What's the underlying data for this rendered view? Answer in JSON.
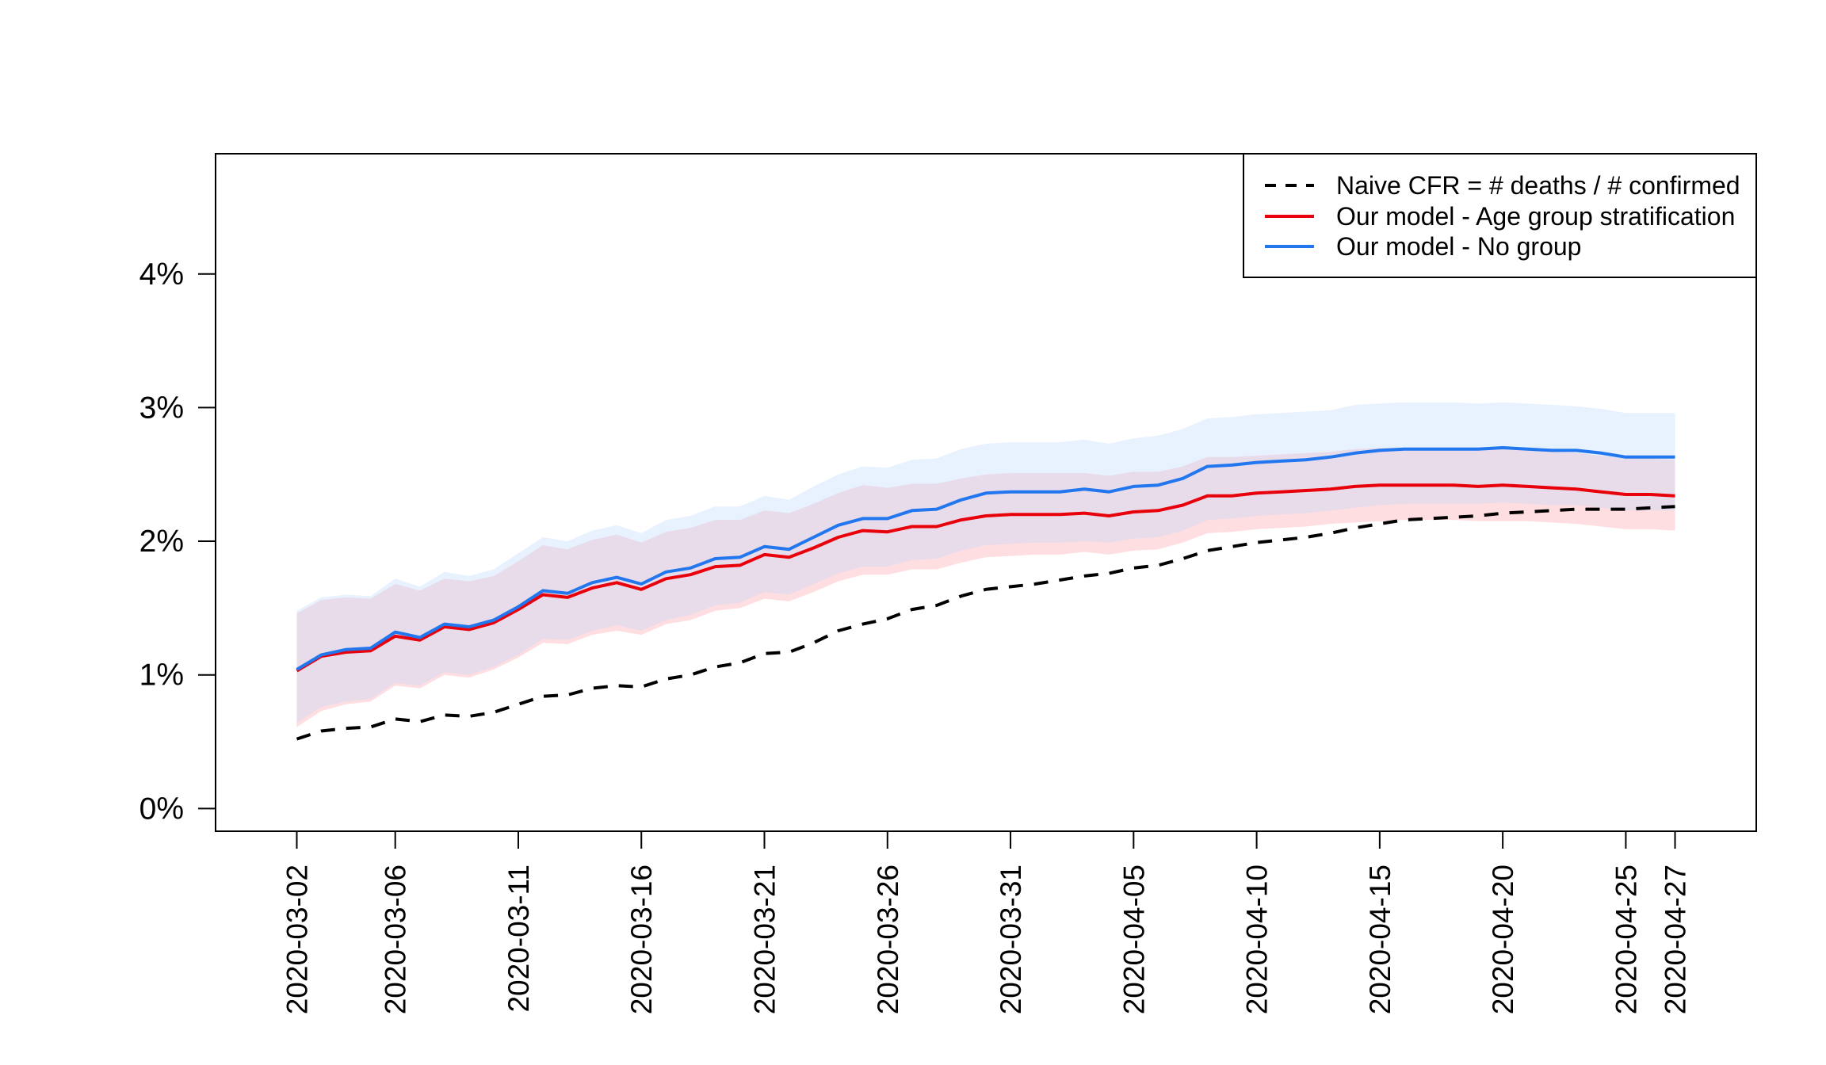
{
  "chart_data": {
    "type": "line",
    "title": "",
    "xlabel": "",
    "ylabel": "",
    "ylim": [
      -0.17,
      4.9
    ],
    "yticks": [
      0,
      1,
      2,
      3,
      4
    ],
    "ytick_labels": [
      "0%",
      "1%",
      "2%",
      "3%",
      "4%"
    ],
    "x_start": "2020-03-02",
    "x_tick_days": [
      0,
      4,
      9,
      14,
      19,
      24,
      29,
      34,
      39,
      44,
      49,
      54,
      56
    ],
    "x_tick_labels": [
      "2020-03-02",
      "2020-03-06",
      "2020-03-11",
      "2020-03-16",
      "2020-03-21",
      "2020-03-26",
      "2020-03-31",
      "2020-04-05",
      "2020-04-10",
      "2020-04-15",
      "2020-04-20",
      "2020-04-25",
      "2020-04-27"
    ],
    "x_range": [
      -3.3,
      59.3
    ],
    "legend_position": "top-right",
    "series": [
      {
        "name": "Naive CFR = # deaths / # confirmed",
        "color": "#000000",
        "dash": true,
        "values": [
          0.52,
          0.58,
          0.6,
          0.61,
          0.67,
          0.65,
          0.7,
          0.69,
          0.72,
          0.78,
          0.84,
          0.85,
          0.9,
          0.92,
          0.91,
          0.97,
          1.0,
          1.06,
          1.09,
          1.16,
          1.17,
          1.24,
          1.33,
          1.38,
          1.42,
          1.49,
          1.52,
          1.59,
          1.64,
          1.66,
          1.68,
          1.71,
          1.74,
          1.76,
          1.8,
          1.82,
          1.87,
          1.93,
          1.96,
          1.99,
          2.01,
          2.03,
          2.06,
          2.1,
          2.13,
          2.16,
          2.17,
          2.18,
          2.19,
          2.21,
          2.22,
          2.23,
          2.24,
          2.24,
          2.24,
          2.25,
          2.26
        ]
      },
      {
        "name": "Our model - Age group stratification",
        "color": "#E8000B",
        "band_color": "#FFA0A8",
        "values": [
          1.03,
          1.14,
          1.17,
          1.18,
          1.29,
          1.26,
          1.36,
          1.34,
          1.39,
          1.49,
          1.6,
          1.58,
          1.65,
          1.69,
          1.64,
          1.72,
          1.75,
          1.81,
          1.82,
          1.9,
          1.88,
          1.95,
          2.03,
          2.08,
          2.07,
          2.11,
          2.11,
          2.16,
          2.19,
          2.2,
          2.2,
          2.2,
          2.21,
          2.19,
          2.22,
          2.23,
          2.27,
          2.34,
          2.34,
          2.36,
          2.37,
          2.38,
          2.39,
          2.41,
          2.42,
          2.42,
          2.42,
          2.42,
          2.41,
          2.42,
          2.41,
          2.4,
          2.39,
          2.37,
          2.35,
          2.35,
          2.34
        ],
        "lower": [
          0.61,
          0.73,
          0.78,
          0.8,
          0.92,
          0.9,
          1.0,
          0.98,
          1.04,
          1.13,
          1.24,
          1.23,
          1.3,
          1.33,
          1.3,
          1.38,
          1.41,
          1.48,
          1.5,
          1.57,
          1.55,
          1.62,
          1.7,
          1.75,
          1.75,
          1.79,
          1.79,
          1.84,
          1.88,
          1.89,
          1.9,
          1.9,
          1.92,
          1.9,
          1.93,
          1.94,
          1.99,
          2.06,
          2.07,
          2.09,
          2.1,
          2.11,
          2.13,
          2.14,
          2.15,
          2.16,
          2.16,
          2.16,
          2.15,
          2.15,
          2.15,
          2.14,
          2.13,
          2.11,
          2.09,
          2.09,
          2.08
        ],
        "upper": [
          1.46,
          1.56,
          1.58,
          1.57,
          1.68,
          1.63,
          1.72,
          1.7,
          1.74,
          1.85,
          1.97,
          1.94,
          2.01,
          2.05,
          1.99,
          2.07,
          2.1,
          2.16,
          2.16,
          2.23,
          2.21,
          2.28,
          2.36,
          2.42,
          2.4,
          2.43,
          2.43,
          2.47,
          2.5,
          2.51,
          2.51,
          2.51,
          2.51,
          2.49,
          2.52,
          2.52,
          2.56,
          2.63,
          2.63,
          2.64,
          2.65,
          2.66,
          2.67,
          2.69,
          2.7,
          2.7,
          2.7,
          2.69,
          2.68,
          2.69,
          2.68,
          2.67,
          2.66,
          2.64,
          2.62,
          2.62,
          2.61
        ]
      },
      {
        "name": "Our model - No group",
        "color": "#2277EE",
        "band_color": "#BCD8FB",
        "values": [
          1.04,
          1.15,
          1.19,
          1.2,
          1.32,
          1.28,
          1.38,
          1.36,
          1.41,
          1.51,
          1.63,
          1.61,
          1.69,
          1.73,
          1.68,
          1.77,
          1.8,
          1.87,
          1.88,
          1.96,
          1.94,
          2.03,
          2.12,
          2.17,
          2.17,
          2.23,
          2.24,
          2.31,
          2.36,
          2.37,
          2.37,
          2.37,
          2.39,
          2.37,
          2.41,
          2.42,
          2.47,
          2.56,
          2.57,
          2.59,
          2.6,
          2.61,
          2.63,
          2.66,
          2.68,
          2.69,
          2.69,
          2.69,
          2.69,
          2.7,
          2.69,
          2.68,
          2.68,
          2.66,
          2.63,
          2.63,
          2.63
        ],
        "lower": [
          0.64,
          0.76,
          0.8,
          0.82,
          0.94,
          0.92,
          1.02,
          1.0,
          1.06,
          1.15,
          1.27,
          1.26,
          1.33,
          1.37,
          1.33,
          1.41,
          1.45,
          1.52,
          1.54,
          1.62,
          1.6,
          1.68,
          1.76,
          1.81,
          1.81,
          1.86,
          1.87,
          1.93,
          1.97,
          1.98,
          1.99,
          1.99,
          2.0,
          1.99,
          2.02,
          2.03,
          2.08,
          2.16,
          2.17,
          2.19,
          2.2,
          2.21,
          2.23,
          2.25,
          2.27,
          2.28,
          2.28,
          2.28,
          2.28,
          2.29,
          2.28,
          2.27,
          2.27,
          2.25,
          2.23,
          2.23,
          2.23
        ],
        "upper": [
          1.48,
          1.58,
          1.6,
          1.59,
          1.72,
          1.66,
          1.77,
          1.74,
          1.79,
          1.91,
          2.03,
          2.0,
          2.08,
          2.12,
          2.06,
          2.16,
          2.19,
          2.26,
          2.26,
          2.34,
          2.31,
          2.41,
          2.5,
          2.56,
          2.55,
          2.61,
          2.62,
          2.69,
          2.73,
          2.74,
          2.74,
          2.74,
          2.76,
          2.73,
          2.77,
          2.79,
          2.84,
          2.92,
          2.93,
          2.95,
          2.96,
          2.97,
          2.98,
          3.02,
          3.03,
          3.04,
          3.04,
          3.04,
          3.03,
          3.04,
          3.03,
          3.02,
          3.01,
          2.99,
          2.96,
          2.96,
          2.96
        ]
      }
    ]
  }
}
